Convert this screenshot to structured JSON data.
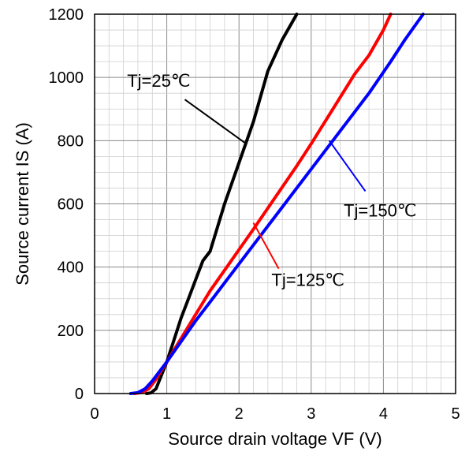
{
  "chart_data": {
    "type": "line",
    "title": "",
    "xlabel": "Source drain voltage VF (V)",
    "ylabel": "Source current IS (A)",
    "xlim": [
      0,
      5
    ],
    "ylim": [
      0,
      1200
    ],
    "x_ticks": [
      "0",
      "1",
      "2",
      "3",
      "4",
      "5"
    ],
    "y_ticks": [
      "0",
      "200",
      "400",
      "600",
      "800",
      "1000",
      "1200"
    ],
    "grid": {
      "major": true,
      "minor": true
    },
    "legend": "none",
    "series": [
      {
        "name": "Tj=25℃",
        "color": "#000000",
        "points": [
          [
            0.72,
            0
          ],
          [
            0.78,
            2
          ],
          [
            0.85,
            15
          ],
          [
            0.92,
            55
          ],
          [
            1.0,
            100
          ],
          [
            1.1,
            170
          ],
          [
            1.2,
            240
          ],
          [
            1.3,
            300
          ],
          [
            1.4,
            360
          ],
          [
            1.5,
            420
          ],
          [
            1.6,
            450
          ],
          [
            1.8,
            600
          ],
          [
            2.0,
            730
          ],
          [
            2.2,
            860
          ],
          [
            2.4,
            1020
          ],
          [
            2.6,
            1120
          ],
          [
            2.8,
            1200
          ]
        ]
      },
      {
        "name": "Tj=125℃",
        "color": "#ff0000",
        "points": [
          [
            0.55,
            0
          ],
          [
            0.65,
            3
          ],
          [
            0.75,
            15
          ],
          [
            0.85,
            45
          ],
          [
            1.0,
            100
          ],
          [
            1.2,
            175
          ],
          [
            1.4,
            250
          ],
          [
            1.6,
            325
          ],
          [
            1.8,
            390
          ],
          [
            2.0,
            455
          ],
          [
            2.2,
            520
          ],
          [
            2.5,
            620
          ],
          [
            2.8,
            720
          ],
          [
            3.0,
            790
          ],
          [
            3.3,
            900
          ],
          [
            3.6,
            1010
          ],
          [
            3.8,
            1070
          ],
          [
            4.0,
            1150
          ],
          [
            4.1,
            1200
          ]
        ]
      },
      {
        "name": "Tj=150℃",
        "color": "#0000ff",
        "points": [
          [
            0.5,
            0
          ],
          [
            0.6,
            3
          ],
          [
            0.7,
            15
          ],
          [
            0.8,
            40
          ],
          [
            1.0,
            100
          ],
          [
            1.2,
            165
          ],
          [
            1.4,
            230
          ],
          [
            1.6,
            290
          ],
          [
            1.8,
            350
          ],
          [
            2.0,
            410
          ],
          [
            2.3,
            500
          ],
          [
            2.6,
            590
          ],
          [
            3.0,
            710
          ],
          [
            3.4,
            830
          ],
          [
            3.8,
            950
          ],
          [
            4.1,
            1050
          ],
          [
            4.3,
            1120
          ],
          [
            4.55,
            1200
          ]
        ]
      }
    ],
    "annotations": [
      {
        "text": "Tj=25℃",
        "series": 0,
        "text_pos": [
          0.45,
          970
        ],
        "target": [
          2.1,
          790
        ]
      },
      {
        "text": "Tj=150℃",
        "series": 2,
        "text_pos": [
          3.45,
          560
        ],
        "target": [
          3.25,
          800
        ]
      },
      {
        "text": "Tj=125℃",
        "series": 1,
        "text_pos": [
          2.45,
          340
        ],
        "target": [
          2.2,
          540
        ]
      }
    ]
  }
}
